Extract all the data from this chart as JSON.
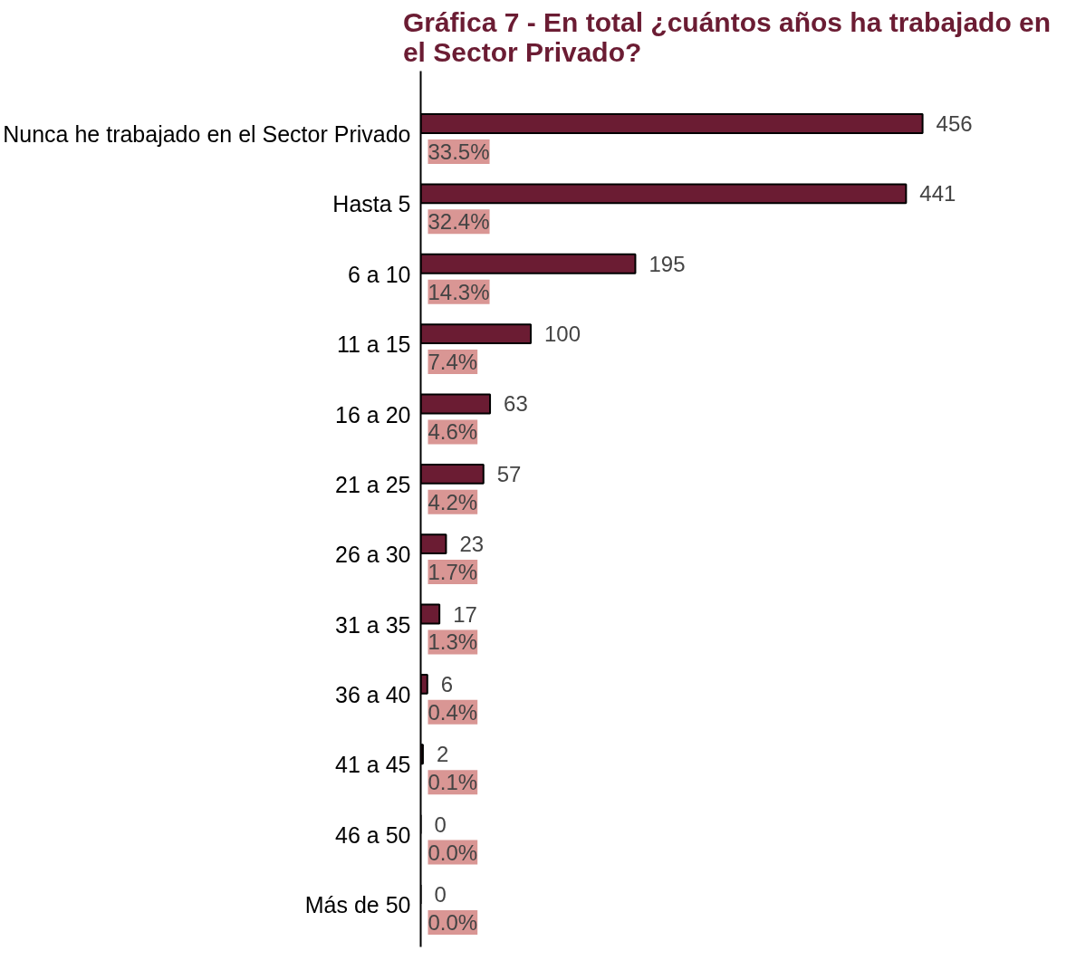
{
  "chart_data": {
    "type": "bar",
    "orientation": "horizontal",
    "title": "Gráfica 7 - En total ¿cuántos años ha trabajado en el Sector Privado?",
    "categories": [
      "Nunca he trabajado en el Sector Privado",
      "Hasta 5",
      "6 a 10",
      "11 a 15",
      "16 a 20",
      "21 a 25",
      "26 a 30",
      "31 a 35",
      "36 a 40",
      "41 a 45",
      "46 a 50",
      "Más de 50"
    ],
    "values": [
      456,
      441,
      195,
      100,
      63,
      57,
      23,
      17,
      6,
      2,
      0,
      0
    ],
    "color": "#6b1c33",
    "data_labels": true,
    "grid": false,
    "tick_labels": "y",
    "annotations": [
      "33.5%",
      "32.4%",
      "14.3%",
      "7.4%",
      "4.6%",
      "4.2%",
      "1.7%",
      "1.3%",
      "0.4%",
      "0.1%",
      "0.0%",
      "0.0%"
    ]
  }
}
